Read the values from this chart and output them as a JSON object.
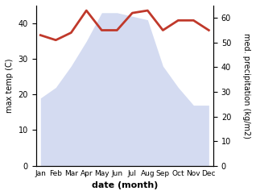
{
  "months": [
    "Jan",
    "Feb",
    "Mar",
    "Apr",
    "May",
    "Jun",
    "Jul",
    "Aug",
    "Sep",
    "Oct",
    "Nov",
    "Dec"
  ],
  "temp": [
    19,
    22,
    28,
    35,
    43,
    43,
    42,
    41,
    28,
    22,
    17,
    17
  ],
  "precip": [
    53,
    51,
    54,
    63,
    55,
    55,
    62,
    63,
    55,
    59,
    59,
    55
  ],
  "temp_color": "#c0392b",
  "fill_color": "#b8c4e8",
  "fill_alpha": 0.6,
  "temp_ylim": [
    0,
    45
  ],
  "precip_ylim": [
    0,
    65
  ],
  "temp_yticks": [
    0,
    10,
    20,
    30,
    40
  ],
  "precip_yticks": [
    0,
    10,
    20,
    30,
    40,
    50,
    60
  ],
  "xlabel": "date (month)",
  "ylabel_left": "max temp (C)",
  "ylabel_right": "med. precipitation (kg/m2)",
  "temp_linewidth": 2.0,
  "figsize": [
    3.18,
    2.42
  ],
  "dpi": 100
}
